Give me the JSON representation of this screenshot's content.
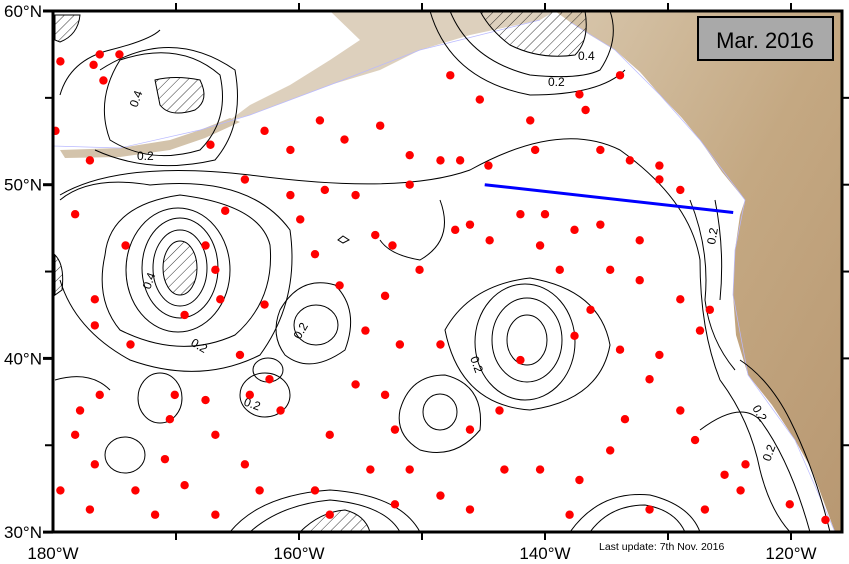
{
  "title_box": {
    "label": "Mar. 2016",
    "background": "#a9a9a9"
  },
  "footer": {
    "last_update": "Last update: 7th Nov. 2016"
  },
  "axes": {
    "x_ticks": [
      {
        "lon": -180,
        "label": "180°W"
      },
      {
        "lon": -160,
        "label": "160°W"
      },
      {
        "lon": -140,
        "label": "140°W"
      },
      {
        "lon": -120,
        "label": "120°W"
      }
    ],
    "y_ticks": [
      {
        "lat": 30,
        "label": "30°N"
      },
      {
        "lat": 40,
        "label": "40°N"
      },
      {
        "lat": 50,
        "label": "50°N"
      },
      {
        "lat": 60,
        "label": "60°N"
      }
    ],
    "lon_range": [
      -180,
      -116
    ],
    "lat_range": [
      30,
      60
    ]
  },
  "contour_labels": [
    "0.4",
    "0.2",
    "0.4",
    "0.2",
    "0.2",
    "0.2",
    "0.2",
    "0.2",
    "0.2",
    "0.2",
    "0.4",
    "0.2"
  ],
  "colors": {
    "float": "#ff0000",
    "section": "#0000ff",
    "land": "#c4a882",
    "land_light": "#ddd0bd"
  },
  "section_line": {
    "start": {
      "lon": -144.9,
      "lat": 50.0
    },
    "end": {
      "lon": -124.7,
      "lat": 48.4
    }
  },
  "floats": [
    [
      -176.2,
      57.5
    ],
    [
      -176.7,
      56.9
    ],
    [
      -174.6,
      57.5
    ],
    [
      -175.9,
      56.0
    ],
    [
      -179.4,
      57.1
    ],
    [
      -179.8,
      53.1
    ],
    [
      -177.0,
      51.4
    ],
    [
      -178.2,
      48.3
    ],
    [
      -174.1,
      46.5
    ],
    [
      -176.6,
      43.4
    ],
    [
      -176.6,
      41.9
    ],
    [
      -173.7,
      40.8
    ],
    [
      -176.2,
      37.9
    ],
    [
      -177.8,
      37.0
    ],
    [
      -178.2,
      35.6
    ],
    [
      -176.6,
      33.9
    ],
    [
      -179.4,
      32.4
    ],
    [
      -177.0,
      31.3
    ],
    [
      -173.3,
      32.4
    ],
    [
      -171.7,
      31.0
    ],
    [
      -170.9,
      34.2
    ],
    [
      -170.5,
      36.5
    ],
    [
      -169.3,
      32.7
    ],
    [
      -166.8,
      31.0
    ],
    [
      -163.2,
      32.4
    ],
    [
      -164.4,
      33.9
    ],
    [
      -166.8,
      35.6
    ],
    [
      -167.6,
      37.6
    ],
    [
      -170.1,
      37.9
    ],
    [
      -162.4,
      38.8
    ],
    [
      -161.5,
      37.0
    ],
    [
      -164.8,
      40.2
    ],
    [
      -162.8,
      43.1
    ],
    [
      -166.4,
      43.4
    ],
    [
      -166.8,
      45.1
    ],
    [
      -169.3,
      42.5
    ],
    [
      -167.6,
      46.5
    ],
    [
      -166.0,
      48.5
    ],
    [
      -164.4,
      50.3
    ],
    [
      -162.8,
      53.1
    ],
    [
      -167.2,
      52.3
    ],
    [
      -160.7,
      49.4
    ],
    [
      -159.9,
      48.0
    ],
    [
      -158.3,
      53.7
    ],
    [
      -157.9,
      49.7
    ],
    [
      -155.4,
      49.4
    ],
    [
      -156.7,
      44.2
    ],
    [
      -158.7,
      46.0
    ],
    [
      -156.3,
      52.6
    ],
    [
      -153.4,
      53.4
    ],
    [
      -151.0,
      51.7
    ],
    [
      -151.0,
      50.0
    ],
    [
      -148.5,
      51.4
    ],
    [
      -146.9,
      51.4
    ],
    [
      -153.8,
      47.1
    ],
    [
      -152.4,
      46.5
    ],
    [
      -153.0,
      43.6
    ],
    [
      -151.8,
      40.8
    ],
    [
      -154.6,
      41.6
    ],
    [
      -155.4,
      38.5
    ],
    [
      -153.0,
      37.9
    ],
    [
      -148.5,
      40.8
    ],
    [
      -150.2,
      45.1
    ],
    [
      -147.3,
      47.4
    ],
    [
      -146.1,
      47.7
    ],
    [
      -144.5,
      46.8
    ],
    [
      -144.6,
      51.1
    ],
    [
      -142.0,
      48.3
    ],
    [
      -140.0,
      48.3
    ],
    [
      -140.4,
      46.5
    ],
    [
      -138.8,
      45.1
    ],
    [
      -137.6,
      47.4
    ],
    [
      -140.8,
      52.0
    ],
    [
      -141.2,
      53.7
    ],
    [
      -136.7,
      54.3
    ],
    [
      -135.5,
      52.0
    ],
    [
      -133.1,
      51.4
    ],
    [
      -130.7,
      51.1
    ],
    [
      -137.2,
      55.2
    ],
    [
      -147.7,
      56.3
    ],
    [
      -135.5,
      47.7
    ],
    [
      -132.3,
      46.8
    ],
    [
      -134.7,
      45.1
    ],
    [
      -132.3,
      44.5
    ],
    [
      -129.0,
      43.4
    ],
    [
      -126.6,
      42.8
    ],
    [
      -130.7,
      40.2
    ],
    [
      -133.9,
      40.5
    ],
    [
      -137.6,
      41.3
    ],
    [
      -136.3,
      42.8
    ],
    [
      -142.0,
      39.9
    ],
    [
      -143.7,
      37.0
    ],
    [
      -146.1,
      35.9
    ],
    [
      -143.3,
      33.6
    ],
    [
      -140.4,
      33.6
    ],
    [
      -137.2,
      33.0
    ],
    [
      -134.7,
      34.7
    ],
    [
      -133.5,
      36.5
    ],
    [
      -131.5,
      38.8
    ],
    [
      -129.0,
      37.0
    ],
    [
      -127.8,
      35.3
    ],
    [
      -125.4,
      33.3
    ],
    [
      -127.0,
      31.3
    ],
    [
      -131.5,
      31.3
    ],
    [
      -138.0,
      31.0
    ],
    [
      -146.1,
      31.3
    ],
    [
      -148.5,
      32.1
    ],
    [
      -151.0,
      33.6
    ],
    [
      -152.2,
      35.9
    ],
    [
      -157.5,
      35.6
    ],
    [
      -158.7,
      32.4
    ],
    [
      -154.2,
      33.6
    ],
    [
      -152.2,
      31.6
    ],
    [
      -157.5,
      31.0
    ],
    [
      -123.7,
      33.9
    ],
    [
      -120.1,
      31.6
    ],
    [
      -117.2,
      30.7
    ],
    [
      -124.1,
      32.4
    ],
    [
      -127.4,
      41.6
    ],
    [
      -129.0,
      49.7
    ],
    [
      -130.7,
      50.3
    ],
    [
      -145.3,
      54.9
    ],
    [
      -160.7,
      52.0
    ],
    [
      -133.9,
      56.3
    ],
    [
      -164.0,
      37.9
    ]
  ]
}
